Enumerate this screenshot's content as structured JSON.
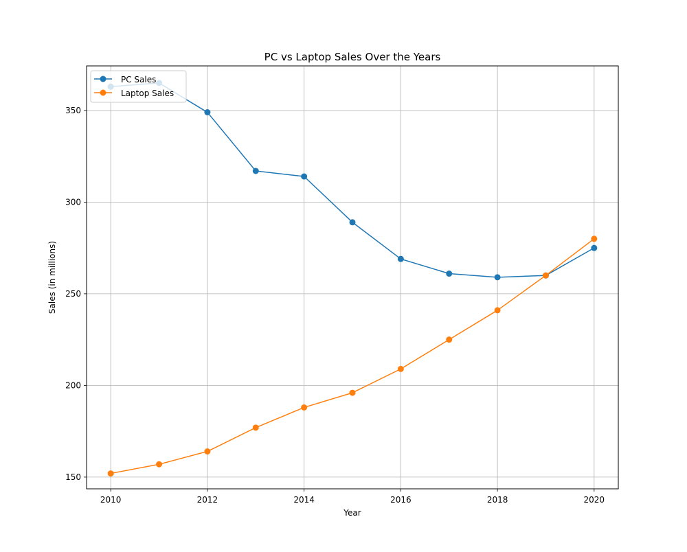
{
  "chart_data": {
    "type": "line",
    "title": "PC vs Laptop Sales Over the Years",
    "xlabel": "Year",
    "ylabel": "Sales (in millions)",
    "x": [
      2010,
      2011,
      2012,
      2013,
      2014,
      2015,
      2016,
      2017,
      2018,
      2019,
      2020
    ],
    "xlim": [
      2009.5,
      2020.5
    ],
    "ylim": [
      143.6,
      374.3
    ],
    "xticks": [
      2010,
      2012,
      2014,
      2016,
      2018,
      2020
    ],
    "yticks": [
      150,
      200,
      250,
      300,
      350
    ],
    "grid": true,
    "legend_position": "top-left",
    "series": [
      {
        "name": "PC Sales",
        "color": "#1f77b4",
        "marker": "circle",
        "values": [
          363,
          365,
          349,
          317,
          314,
          289,
          269,
          261,
          259,
          260,
          275
        ]
      },
      {
        "name": "Laptop Sales",
        "color": "#ff7f0e",
        "marker": "circle",
        "values": [
          152,
          157,
          164,
          177,
          188,
          196,
          209,
          225,
          241,
          260,
          280
        ]
      }
    ]
  }
}
